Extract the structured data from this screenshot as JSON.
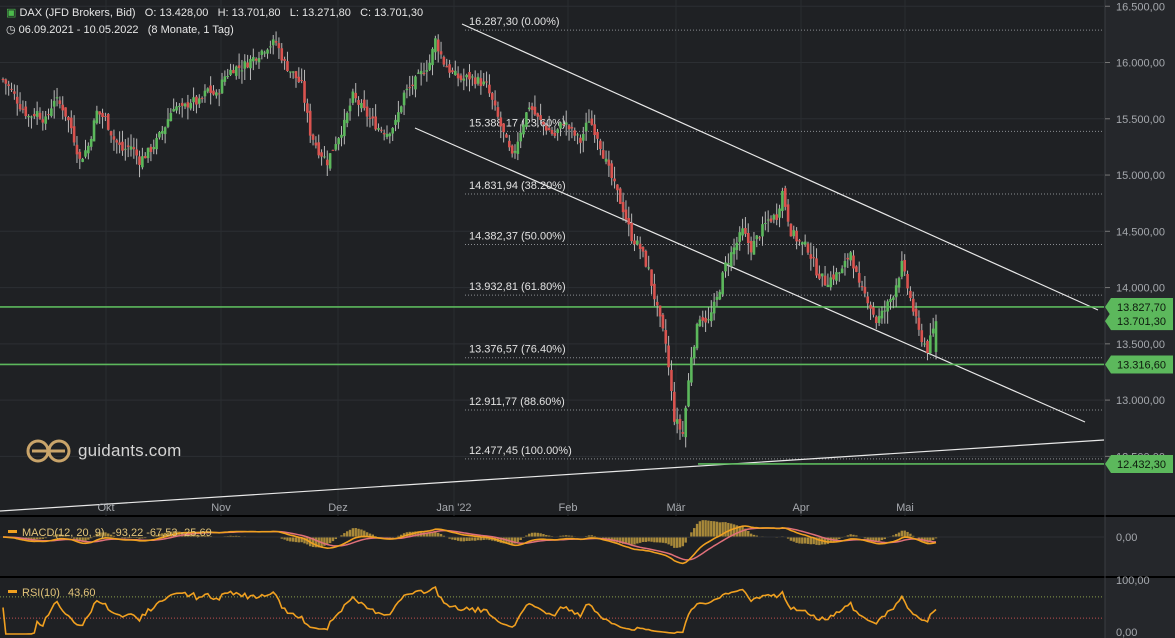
{
  "header": {
    "instrument": "DAX (JFD Brokers, Bid)",
    "open": "O: 13.428,00",
    "high": "H: 13.701,80",
    "low": "L: 13.271,80",
    "close": "C: 13.701,30",
    "range": "06.09.2021 - 10.05.2022",
    "period": "(8 Monate, 1 Tag)"
  },
  "brand": "guidants.com",
  "colors": {
    "up": "#5cb85c",
    "down": "#d9534f",
    "background": "#1f2124",
    "macd": "#f0a020",
    "signal": "#e0707a",
    "rsi": "#f0a020"
  },
  "chart_data": {
    "type": "candlestick",
    "y_ticks": [
      "16.500,00",
      "16.000,00",
      "15.500,00",
      "15.000,00",
      "14.500,00",
      "14.000,00",
      "13.500,00",
      "13.000,00",
      "12.500,00"
    ],
    "y_values": [
      16500,
      16000,
      15500,
      15000,
      14500,
      14000,
      13500,
      13000,
      12500
    ],
    "ylim": [
      11970,
      16520
    ],
    "x_ticks": [
      "Okt",
      "Nov",
      "Dez",
      "Jan '22",
      "Feb",
      "Mär",
      "Apr",
      "Mai"
    ],
    "fibonacci": [
      {
        "label": "16.287,30 (0.00%)",
        "value": 16287.3
      },
      {
        "label": "15.388,17 (23.60%)",
        "value": 15388.17
      },
      {
        "label": "14.831,94 (38.20%)",
        "value": 14831.94
      },
      {
        "label": "14.382,37 (50.00%)",
        "value": 14382.37
      },
      {
        "label": "13.932,81 (61.80%)",
        "value": 13932.81
      },
      {
        "label": "13.376,57 (76.40%)",
        "value": 13376.57
      },
      {
        "label": "12.911,77 (88.60%)",
        "value": 12911.77
      },
      {
        "label": "12.477,45 (100.00%)",
        "value": 12477.45
      }
    ],
    "price_labels": [
      {
        "text": "13.827,70",
        "value": 13827.7
      },
      {
        "text": "13.701,30",
        "value": 13701.3
      },
      {
        "text": "13.316,60",
        "value": 13316.6
      },
      {
        "text": "12.432,30",
        "value": 12432.3
      }
    ],
    "support_levels": [
      13827.7,
      13316.6,
      12432.3
    ],
    "close_path": [
      [
        0,
        15850
      ],
      [
        3,
        15750
      ],
      [
        6,
        15620
      ],
      [
        9,
        15520
      ],
      [
        12,
        15560
      ],
      [
        15,
        15480
      ],
      [
        18,
        15680
      ],
      [
        21,
        15600
      ],
      [
        24,
        15420
      ],
      [
        27,
        15130
      ],
      [
        30,
        15260
      ],
      [
        33,
        15560
      ],
      [
        36,
        15500
      ],
      [
        39,
        15320
      ],
      [
        42,
        15220
      ],
      [
        45,
        15260
      ],
      [
        48,
        15130
      ],
      [
        51,
        15200
      ],
      [
        54,
        15300
      ],
      [
        57,
        15440
      ],
      [
        60,
        15620
      ],
      [
        63,
        15580
      ],
      [
        66,
        15660
      ],
      [
        69,
        15640
      ],
      [
        72,
        15760
      ],
      [
        75,
        15700
      ],
      [
        78,
        15880
      ],
      [
        81,
        15950
      ],
      [
        84,
        15960
      ],
      [
        87,
        16020
      ],
      [
        90,
        16080
      ],
      [
        93,
        16150
      ],
      [
        96,
        16180
      ],
      [
        99,
        15990
      ],
      [
        102,
        15900
      ],
      [
        105,
        15800
      ],
      [
        108,
        15380
      ],
      [
        111,
        15220
      ],
      [
        114,
        15120
      ],
      [
        117,
        15300
      ],
      [
        120,
        15450
      ],
      [
        123,
        15700
      ],
      [
        126,
        15600
      ],
      [
        129,
        15500
      ],
      [
        132,
        15420
      ],
      [
        135,
        15380
      ],
      [
        138,
        15460
      ],
      [
        141,
        15720
      ],
      [
        144,
        15800
      ],
      [
        147,
        15900
      ],
      [
        150,
        16000
      ],
      [
        152,
        16200
      ],
      [
        155,
        16000
      ],
      [
        158,
        15900
      ],
      [
        161,
        15850
      ],
      [
        164,
        15870
      ],
      [
        167,
        15840
      ],
      [
        170,
        15790
      ],
      [
        173,
        15580
      ],
      [
        176,
        15360
      ],
      [
        179,
        15150
      ],
      [
        182,
        15400
      ],
      [
        185,
        15620
      ],
      [
        188,
        15500
      ],
      [
        191,
        15420
      ],
      [
        194,
        15350
      ],
      [
        197,
        15480
      ],
      [
        200,
        15380
      ],
      [
        203,
        15300
      ],
      [
        206,
        15500
      ],
      [
        209,
        15350
      ],
      [
        212,
        15110
      ],
      [
        215,
        14900
      ],
      [
        218,
        14700
      ],
      [
        221,
        14450
      ],
      [
        224,
        14350
      ],
      [
        227,
        14150
      ],
      [
        230,
        13800
      ],
      [
        233,
        13500
      ],
      [
        236,
        12840
      ],
      [
        239,
        12700
      ],
      [
        242,
        13400
      ],
      [
        245,
        13750
      ],
      [
        248,
        13700
      ],
      [
        251,
        13900
      ],
      [
        254,
        14200
      ],
      [
        257,
        14350
      ],
      [
        260,
        14500
      ],
      [
        263,
        14350
      ],
      [
        266,
        14480
      ],
      [
        269,
        14600
      ],
      [
        272,
        14640
      ],
      [
        274,
        14850
      ],
      [
        277,
        14500
      ],
      [
        280,
        14400
      ],
      [
        283,
        14350
      ],
      [
        286,
        14150
      ],
      [
        289,
        14050
      ],
      [
        292,
        14100
      ],
      [
        295,
        14150
      ],
      [
        298,
        14320
      ],
      [
        301,
        14000
      ],
      [
        304,
        13900
      ],
      [
        307,
        13700
      ],
      [
        310,
        13800
      ],
      [
        313,
        13950
      ],
      [
        316,
        14200
      ],
      [
        319,
        13900
      ],
      [
        322,
        13600
      ],
      [
        325,
        13450
      ],
      [
        328,
        13701
      ]
    ],
    "macd": {
      "label": "MACD(12, 20, 9)",
      "values": "-93,22  -67,53  -25,69",
      "tick": "0,00"
    },
    "rsi": {
      "label": "RSI(10)",
      "value": "43,60",
      "ticks": [
        "100,00",
        "0,00"
      ]
    }
  }
}
